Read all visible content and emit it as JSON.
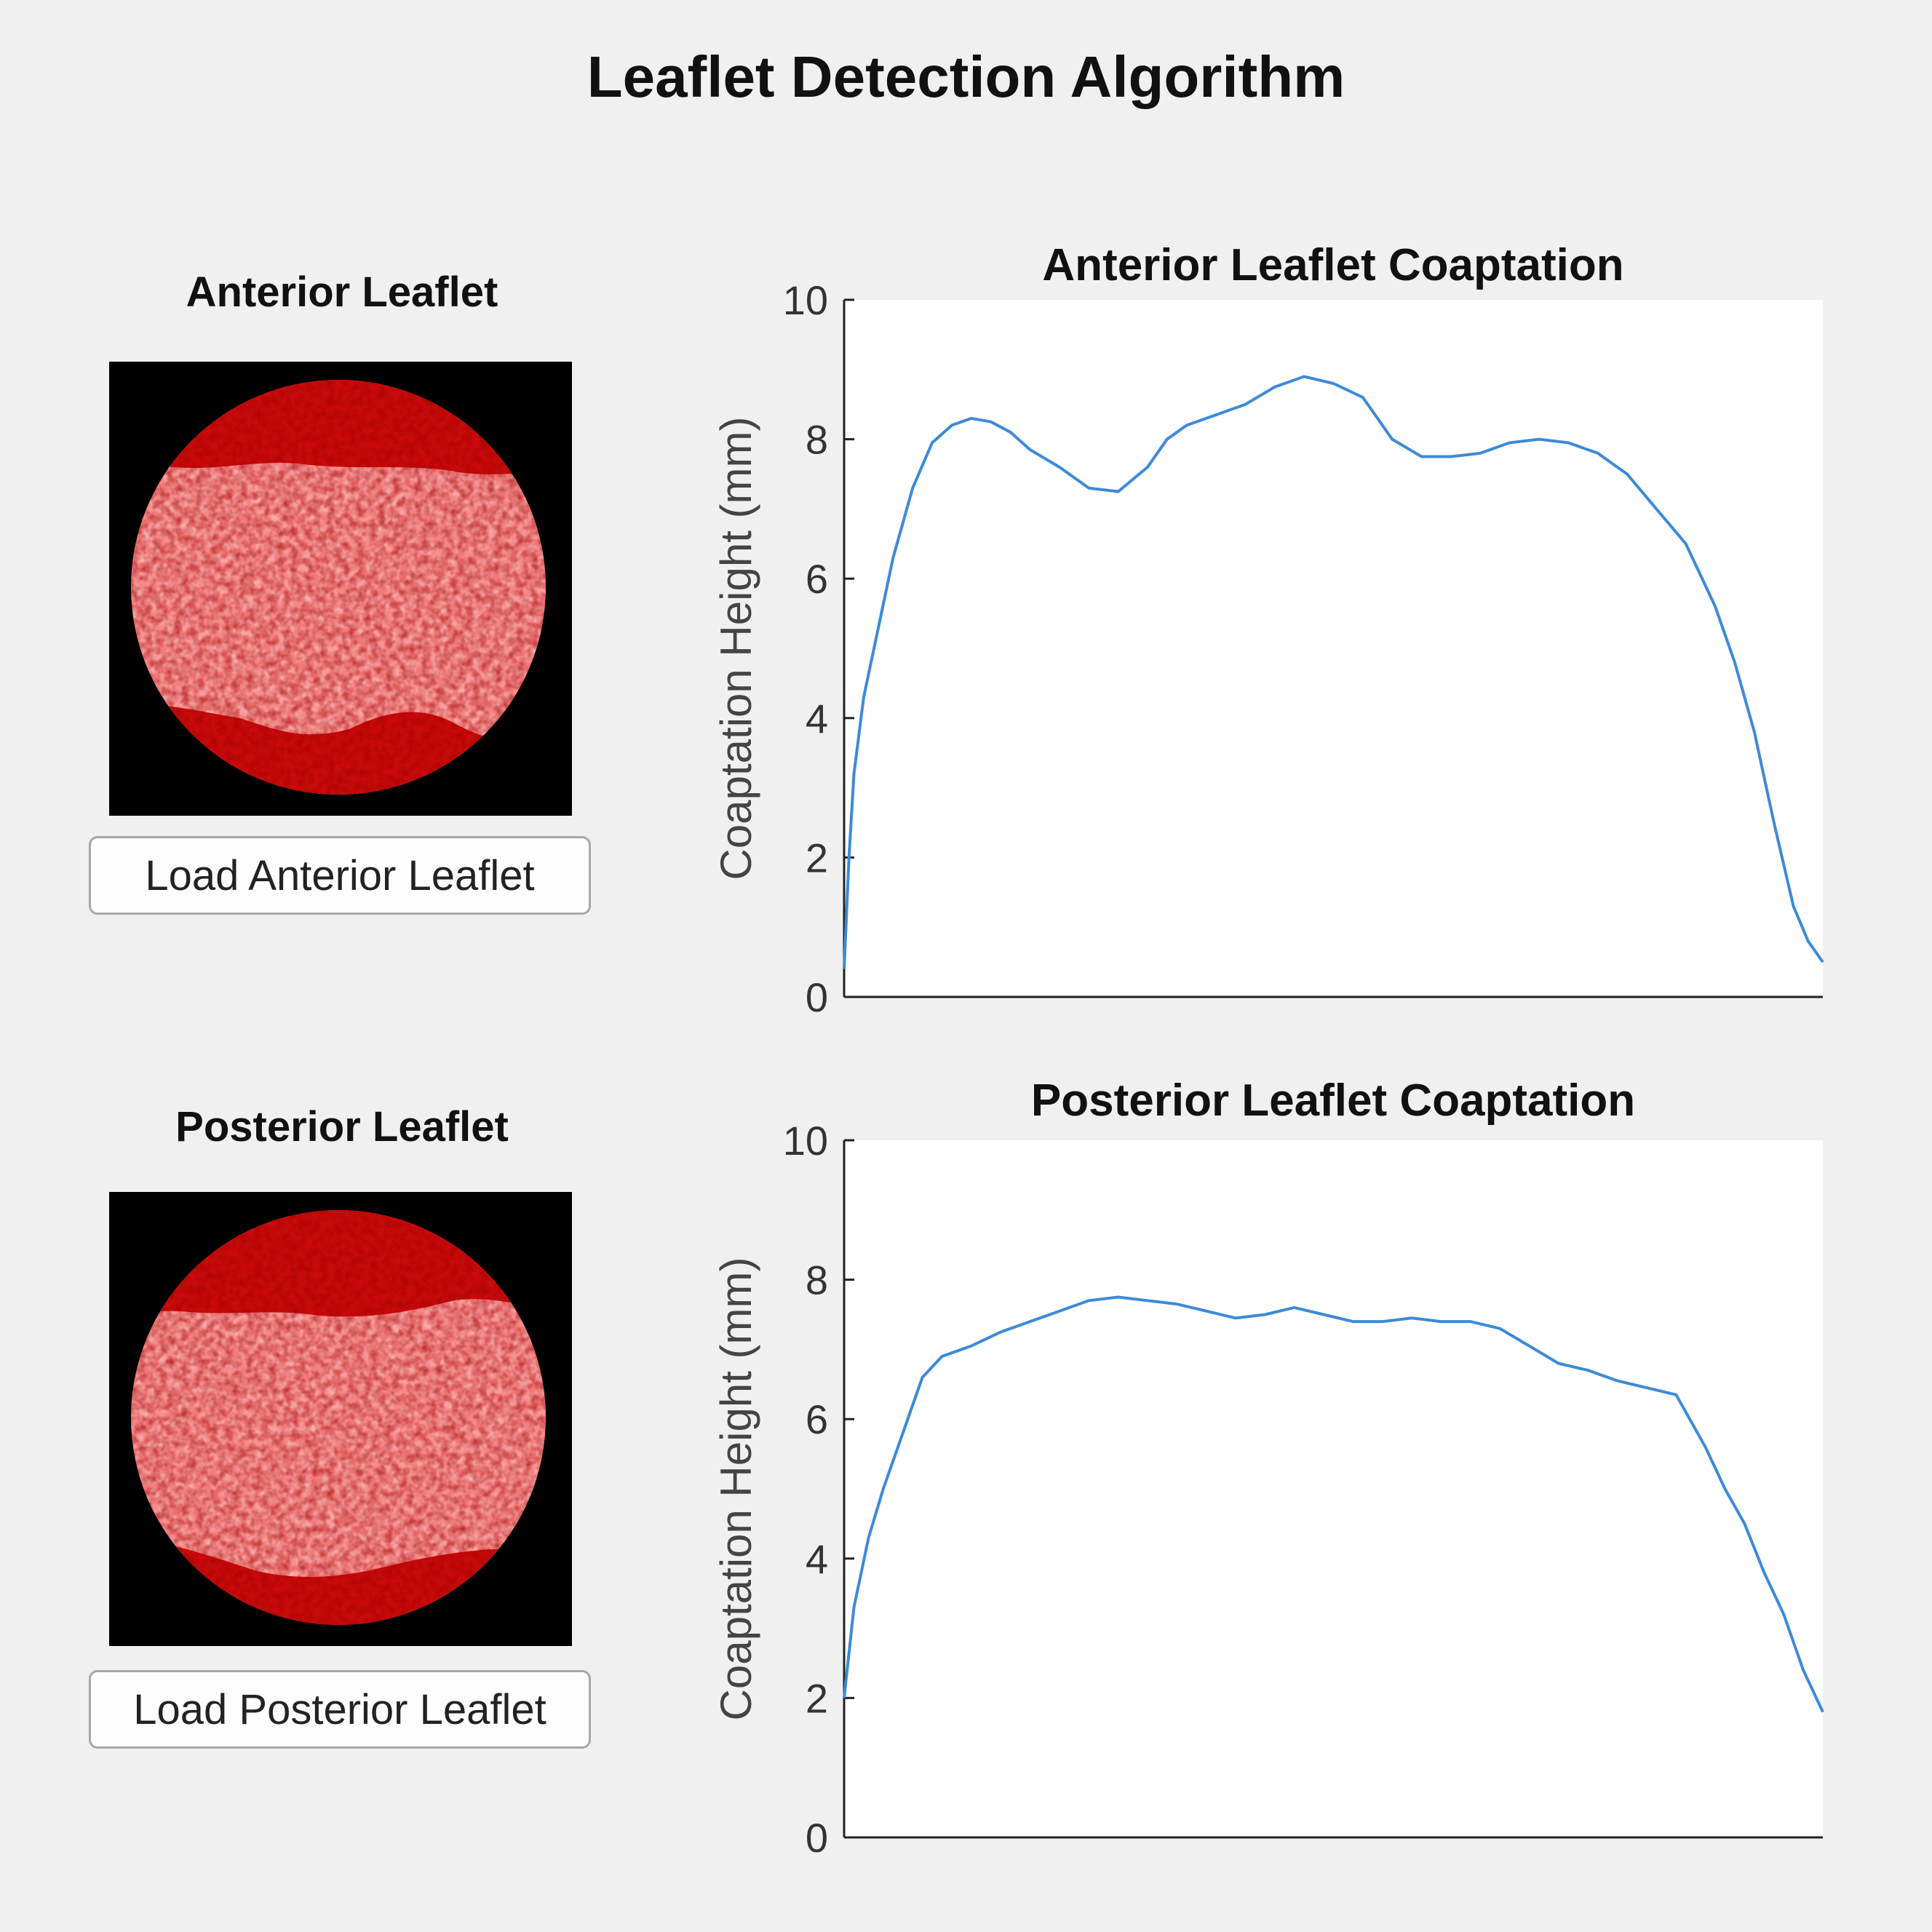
{
  "app": {
    "title": "Leaflet Detection Algorithm"
  },
  "panels": [
    {
      "heading": "Anterior Leaflet",
      "button_label": "Load Anterior Leaflet"
    },
    {
      "heading": "Posterior Leaflet",
      "button_label": "Load Posterior Leaflet"
    }
  ],
  "colors": {
    "line": "#3d8ad8",
    "leaflet_dark": "#b00000",
    "leaflet_mid": "#e02020",
    "leaflet_light": "#ffe0e0"
  },
  "chart_data": [
    {
      "type": "line",
      "title": "Anterior Leaflet Coaptation",
      "xlabel": "",
      "ylabel": "Coaptation Height (mm)",
      "ylim": [
        0,
        10
      ],
      "yticks": [
        "0",
        "2",
        "4",
        "6",
        "8",
        "10"
      ],
      "xlim": [
        0,
        1
      ],
      "x": [
        0,
        0.005,
        0.01,
        0.02,
        0.035,
        0.05,
        0.07,
        0.09,
        0.11,
        0.13,
        0.15,
        0.17,
        0.19,
        0.22,
        0.25,
        0.28,
        0.31,
        0.33,
        0.35,
        0.38,
        0.41,
        0.44,
        0.47,
        0.5,
        0.53,
        0.56,
        0.59,
        0.62,
        0.65,
        0.68,
        0.71,
        0.74,
        0.77,
        0.8,
        0.83,
        0.86,
        0.89,
        0.91,
        0.93,
        0.95,
        0.97,
        0.985,
        1
      ],
      "values": [
        0.4,
        2.0,
        3.2,
        4.3,
        5.3,
        6.3,
        7.3,
        7.95,
        8.2,
        8.3,
        8.25,
        8.1,
        7.85,
        7.6,
        7.3,
        7.25,
        7.6,
        8.0,
        8.2,
        8.35,
        8.5,
        8.75,
        8.9,
        8.8,
        8.6,
        8.0,
        7.75,
        7.75,
        7.8,
        7.95,
        8.0,
        7.95,
        7.8,
        7.5,
        7.0,
        6.5,
        5.6,
        4.8,
        3.8,
        2.5,
        1.3,
        0.8,
        0.5
      ]
    },
    {
      "type": "line",
      "title": "Posterior Leaflet Coaptation",
      "xlabel": "",
      "ylabel": "Coaptation Height (mm)",
      "ylim": [
        0,
        10
      ],
      "yticks": [
        "0",
        "2",
        "4",
        "6",
        "8",
        "10"
      ],
      "xlim": [
        0,
        1
      ],
      "x": [
        0,
        0.01,
        0.025,
        0.04,
        0.06,
        0.08,
        0.1,
        0.13,
        0.16,
        0.19,
        0.22,
        0.25,
        0.28,
        0.31,
        0.34,
        0.37,
        0.4,
        0.43,
        0.46,
        0.49,
        0.52,
        0.55,
        0.58,
        0.61,
        0.64,
        0.67,
        0.7,
        0.73,
        0.76,
        0.79,
        0.82,
        0.85,
        0.88,
        0.9,
        0.92,
        0.94,
        0.96,
        0.98,
        1
      ],
      "values": [
        2.0,
        3.3,
        4.3,
        5.0,
        5.8,
        6.6,
        6.9,
        7.05,
        7.25,
        7.4,
        7.55,
        7.7,
        7.75,
        7.7,
        7.65,
        7.55,
        7.45,
        7.5,
        7.6,
        7.5,
        7.4,
        7.4,
        7.45,
        7.4,
        7.4,
        7.3,
        7.05,
        6.8,
        6.7,
        6.55,
        6.45,
        6.35,
        5.6,
        5.0,
        4.5,
        3.8,
        3.2,
        2.4,
        1.8
      ]
    }
  ]
}
